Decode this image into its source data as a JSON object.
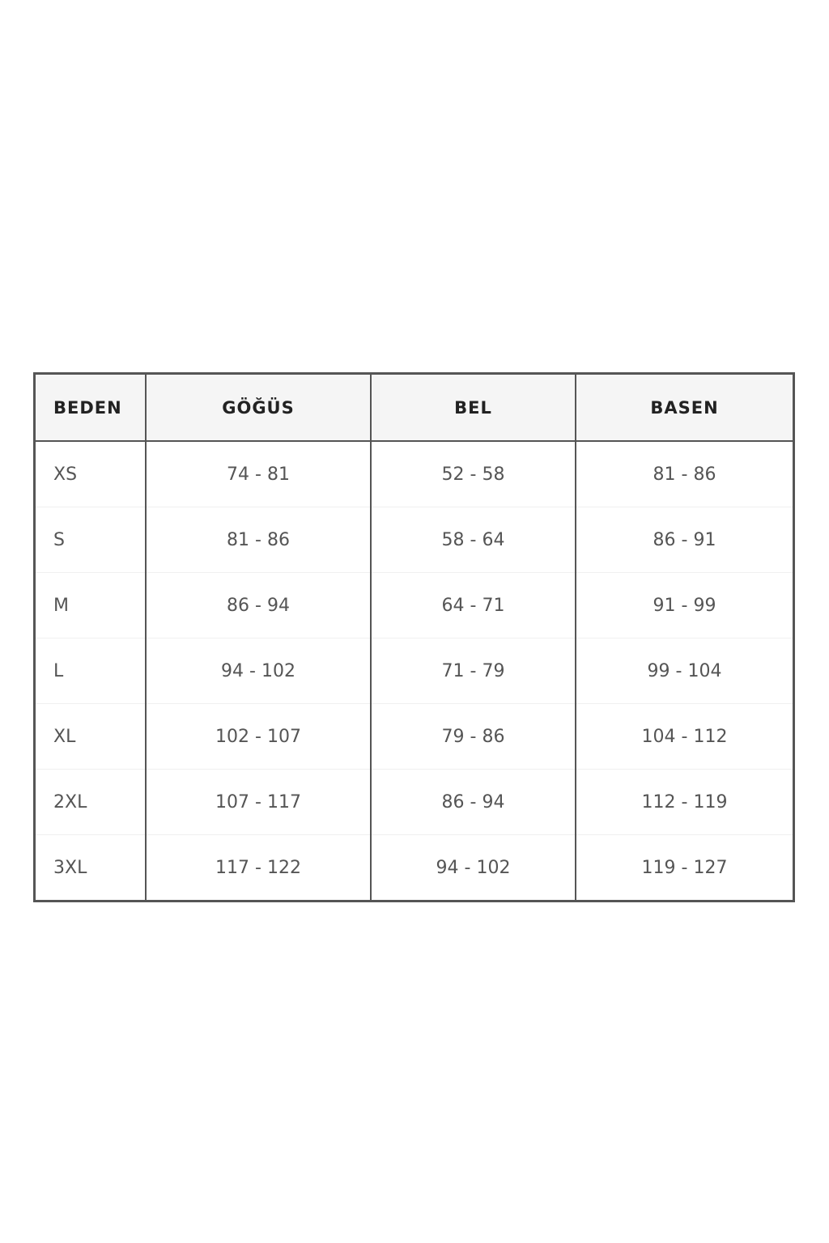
{
  "size_chart": {
    "headers": [
      "BEDEN",
      "GÖĞÜS",
      "BEL",
      "BASEN"
    ],
    "rows": [
      [
        "XS",
        "74 - 81",
        "52 - 58",
        "81 - 86"
      ],
      [
        "S",
        "81 - 86",
        "58 - 64",
        "86 - 91"
      ],
      [
        "M",
        "86 - 94",
        "64 - 71",
        "91 - 99"
      ],
      [
        "L",
        "94 - 102",
        "71 - 79",
        "99 - 104"
      ],
      [
        "XL",
        "102 - 107",
        "79 - 86",
        "104 - 112"
      ],
      [
        "2XL",
        "107 - 117",
        "86 - 94",
        "112 - 119"
      ],
      [
        "3XL",
        "117 - 122",
        "94 - 102",
        "119 - 127"
      ]
    ]
  }
}
